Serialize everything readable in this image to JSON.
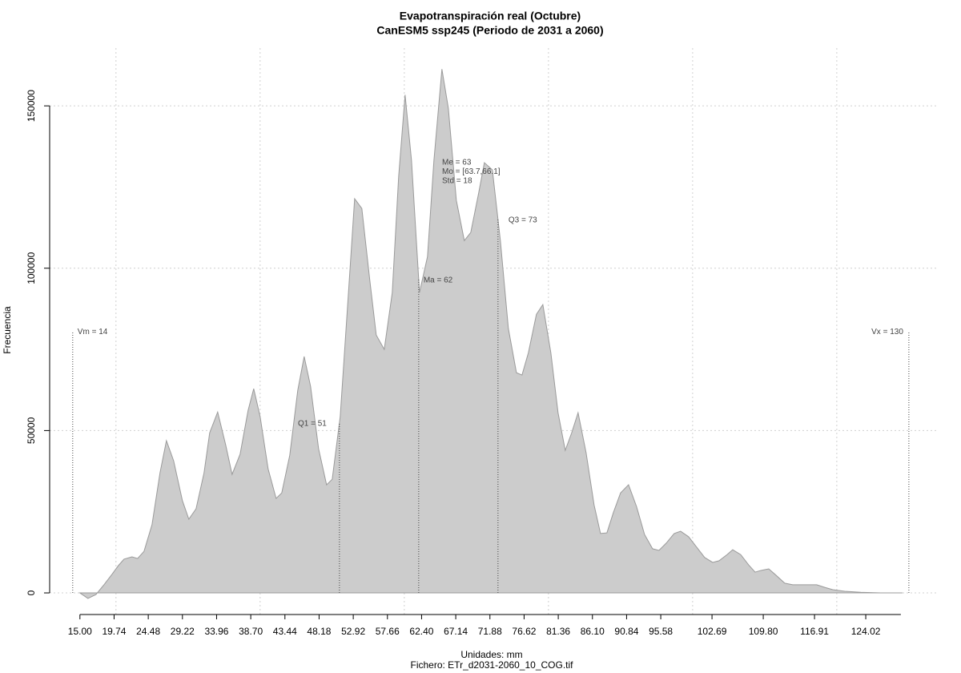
{
  "chart_data": {
    "type": "area",
    "title": "Evapotranspiración real (Octubre)",
    "subtitle": "CanESM5 ssp245 (Periodo de 2031 a 2060)",
    "ylabel": "Frecuencia",
    "xlabel": "Unidades: mm",
    "caption": "Fichero: ETr_d2031-2060_10_COG.tif",
    "color": "#cccccc",
    "grid": true,
    "xlim": [
      10.8,
      133.9
    ],
    "ylim": [
      -6900,
      167800
    ],
    "xticks": [
      {
        "value": 15.0,
        "label": "15.00"
      },
      {
        "value": 19.74,
        "label": "19.74"
      },
      {
        "value": 24.48,
        "label": "24.48"
      },
      {
        "value": 29.22,
        "label": "29.22"
      },
      {
        "value": 33.96,
        "label": "33.96"
      },
      {
        "value": 38.7,
        "label": "38.70"
      },
      {
        "value": 43.44,
        "label": "43.44"
      },
      {
        "value": 48.18,
        "label": "48.18"
      },
      {
        "value": 52.92,
        "label": "52.92"
      },
      {
        "value": 57.66,
        "label": "57.66"
      },
      {
        "value": 62.4,
        "label": "62.40"
      },
      {
        "value": 67.14,
        "label": "67.14"
      },
      {
        "value": 71.88,
        "label": "71.88"
      },
      {
        "value": 76.62,
        "label": "76.62"
      },
      {
        "value": 81.36,
        "label": "81.36"
      },
      {
        "value": 86.1,
        "label": "86.10"
      },
      {
        "value": 90.84,
        "label": "90.84"
      },
      {
        "value": 95.58,
        "label": "95.58"
      },
      {
        "value": 102.69,
        "label": "102.69"
      },
      {
        "value": 109.8,
        "label": "109.80"
      },
      {
        "value": 116.91,
        "label": "116.91"
      },
      {
        "value": 124.02,
        "label": "124.02"
      }
    ],
    "xgrid": [
      20,
      40,
      60,
      80,
      100,
      120
    ],
    "yticks": [
      0,
      50000,
      100000,
      150000
    ],
    "x": [
      15.0,
      16.11,
      17.22,
      18.33,
      19.44,
      20.33,
      21.11,
      22.22,
      23.0,
      23.89,
      25.0,
      26.11,
      27.0,
      28.0,
      29.22,
      30.11,
      31.11,
      32.22,
      33.0,
      34.11,
      35.22,
      36.11,
      37.22,
      38.33,
      39.11,
      40.0,
      41.11,
      42.22,
      43.0,
      44.11,
      45.22,
      46.11,
      47.0,
      48.11,
      49.22,
      50.0,
      51.11,
      52.22,
      53.11,
      54.11,
      55.22,
      56.11,
      57.22,
      58.33,
      59.22,
      60.11,
      61.0,
      62.11,
      63.22,
      64.11,
      65.22,
      66.11,
      67.22,
      68.33,
      69.22,
      70.33,
      71.11,
      72.22,
      73.33,
      74.44,
      75.56,
      76.33,
      77.22,
      78.33,
      79.22,
      80.33,
      81.33,
      82.33,
      83.22,
      84.11,
      85.22,
      86.33,
      87.22,
      88.11,
      89.0,
      90.0,
      91.11,
      92.22,
      93.33,
      94.44,
      95.33,
      96.33,
      97.44,
      98.33,
      99.44,
      100.56,
      101.67,
      102.78,
      103.67,
      104.78,
      105.56,
      106.67,
      107.78,
      108.67,
      109.44,
      110.56,
      111.44,
      112.78,
      113.89,
      117.22,
      118.33,
      119.44,
      121.11,
      123.33,
      126.11,
      129.11
    ],
    "values": [
      0,
      -1700,
      -500,
      2500,
      5700,
      8400,
      10400,
      11100,
      10600,
      12800,
      21000,
      37000,
      46900,
      40700,
      28400,
      22700,
      25900,
      37000,
      49300,
      55700,
      45600,
      36500,
      42700,
      56200,
      62900,
      54300,
      38200,
      29100,
      30800,
      42400,
      62400,
      72800,
      63600,
      44400,
      33300,
      35000,
      54300,
      91300,
      121400,
      118400,
      96200,
      79400,
      75000,
      92500,
      128300,
      153400,
      133200,
      92500,
      103600,
      133200,
      161300,
      149300,
      120900,
      108500,
      111000,
      123300,
      132500,
      130300,
      108500,
      81400,
      67800,
      67100,
      74000,
      85800,
      88800,
      74000,
      55500,
      43900,
      49300,
      55500,
      43200,
      27100,
      18300,
      18500,
      24700,
      30800,
      33300,
      26600,
      18000,
      13600,
      13100,
      15300,
      18300,
      19000,
      17300,
      14100,
      10900,
      9400,
      9900,
      11800,
      13300,
      11800,
      8600,
      6400,
      6900,
      7400,
      5700,
      3000,
      2500,
      2500,
      1700,
      1000,
      500,
      200,
      0,
      0
    ],
    "markers": [
      {
        "label": "Vm = 14",
        "x": 14
      },
      {
        "label": "Q1 = 51",
        "x": 51
      },
      {
        "label": "Ma = 62",
        "x": 62
      },
      {
        "label": "Q3 = 73",
        "x": 73
      },
      {
        "label": "Vx = 130",
        "x": 130
      }
    ],
    "stats": [
      "Me = 63",
      "Mo = [63.7,66.1]",
      "Std = 18"
    ]
  }
}
